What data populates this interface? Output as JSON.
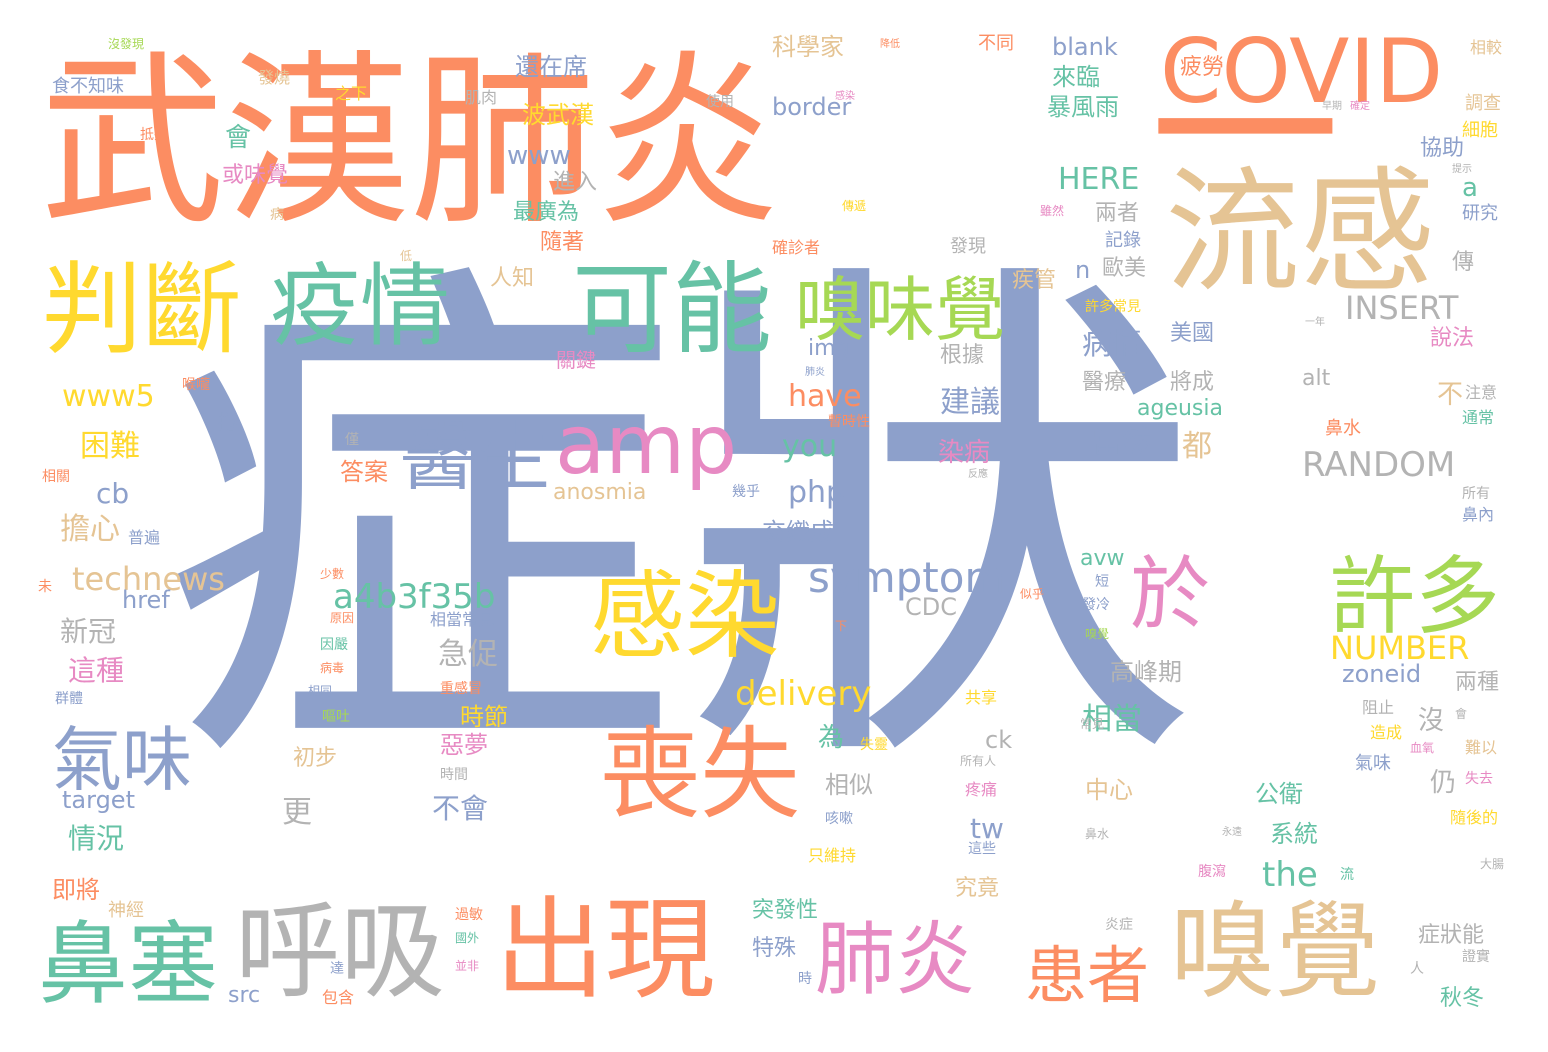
{
  "palette": {
    "orange": "#fc8d62",
    "blue": "#8da0cb",
    "beige": "#e5c494",
    "green": "#66c2a5",
    "yellow": "#ffd92f",
    "pink": "#e78ac3",
    "lime": "#a6d854",
    "gray": "#b3b3b3"
  },
  "words": [
    {
      "text": "症狀",
      "color": "blue",
      "size": 520
    },
    {
      "text": "武漢",
      "color": "orange",
      "size": 185
    },
    {
      "text": "肺炎",
      "color": "orange",
      "size": 185
    },
    {
      "text": "一",
      "color": "orange",
      "size": 190
    },
    {
      "text": "COVID",
      "color": "orange",
      "size": 88
    },
    {
      "text": "流感",
      "color": "beige",
      "size": 135
    },
    {
      "text": "判斷",
      "color": "yellow",
      "size": 100
    },
    {
      "text": "疫情",
      "color": "green",
      "size": 90
    },
    {
      "text": "可能",
      "color": "green",
      "size": 100
    },
    {
      "text": "嗅味覺",
      "color": "lime",
      "size": 70
    },
    {
      "text": "amp",
      "color": "pink",
      "size": 82
    },
    {
      "text": "醫生",
      "color": "blue",
      "size": 75
    },
    {
      "text": "感染",
      "color": "yellow",
      "size": 95
    },
    {
      "text": "於",
      "color": "pink",
      "size": 80
    },
    {
      "text": "許多",
      "color": "lime",
      "size": 85
    },
    {
      "text": "喪失",
      "color": "orange",
      "size": 100
    },
    {
      "text": "氣味",
      "color": "blue",
      "size": 70
    },
    {
      "text": "鼻塞",
      "color": "green",
      "size": 90
    },
    {
      "text": "呼吸",
      "color": "gray",
      "size": 105
    },
    {
      "text": "出現",
      "color": "orange",
      "size": 110
    },
    {
      "text": "肺炎",
      "color": "pink",
      "size": 80
    },
    {
      "text": "患者",
      "color": "orange",
      "size": 62
    },
    {
      "text": "嗅覺",
      "color": "beige",
      "size": 105
    },
    {
      "text": "symptom",
      "color": "blue",
      "size": 42
    },
    {
      "text": "a4b3f35b",
      "color": "green",
      "size": 34
    },
    {
      "text": "technews",
      "color": "beige",
      "size": 32
    },
    {
      "text": "delivery",
      "color": "yellow",
      "size": 34
    },
    {
      "text": "NUMBER",
      "color": "yellow",
      "size": 32
    },
    {
      "text": "RANDOM",
      "color": "gray",
      "size": 34
    },
    {
      "text": "INSERT",
      "color": "gray",
      "size": 32
    },
    {
      "text": "HERE",
      "color": "green",
      "size": 30
    },
    {
      "text": "www5",
      "color": "yellow",
      "size": 30
    },
    {
      "text": "www",
      "color": "blue",
      "size": 26
    },
    {
      "text": "border",
      "color": "blue",
      "size": 24
    },
    {
      "text": "blank",
      "color": "blue",
      "size": 24
    },
    {
      "text": "have",
      "color": "orange",
      "size": 30
    },
    {
      "text": "you",
      "color": "green",
      "size": 30
    },
    {
      "text": "php",
      "color": "blue",
      "size": 30
    },
    {
      "text": "the",
      "color": "green",
      "size": 34
    },
    {
      "text": "cb",
      "color": "blue",
      "size": 28
    },
    {
      "text": "tw",
      "color": "blue",
      "size": 28
    },
    {
      "text": "ck",
      "color": "gray",
      "size": 24
    },
    {
      "text": "img",
      "color": "blue",
      "size": 22
    },
    {
      "text": "alt",
      "color": "gray",
      "size": 22
    },
    {
      "text": "ageusia",
      "color": "green",
      "size": 22
    },
    {
      "text": "anosmia",
      "color": "beige",
      "size": 22
    },
    {
      "text": "href",
      "color": "blue",
      "size": 24
    },
    {
      "text": "CDC",
      "color": "gray",
      "size": 24
    },
    {
      "text": "zoneid",
      "color": "blue",
      "size": 24
    },
    {
      "text": "target",
      "color": "blue",
      "size": 24
    },
    {
      "text": "src",
      "color": "blue",
      "size": 22
    },
    {
      "text": "avw",
      "color": "green",
      "size": 22
    },
    {
      "text": "a",
      "color": "green",
      "size": 26
    },
    {
      "text": "n",
      "color": "blue",
      "size": 24
    },
    {
      "text": "還在席",
      "color": "blue",
      "size": 24
    },
    {
      "text": "科學家",
      "color": "beige",
      "size": 24
    },
    {
      "text": "不同",
      "color": "orange",
      "size": 18
    },
    {
      "text": "來臨",
      "color": "green",
      "size": 24
    },
    {
      "text": "暴風雨",
      "color": "green",
      "size": 24
    },
    {
      "text": "疲勞",
      "color": "orange",
      "size": 22
    },
    {
      "text": "波武漢",
      "color": "yellow",
      "size": 24
    },
    {
      "text": "會",
      "color": "green",
      "size": 26
    },
    {
      "text": "或味覺",
      "color": "pink",
      "size": 22
    },
    {
      "text": "進入",
      "color": "gray",
      "size": 22
    },
    {
      "text": "最廣為",
      "color": "green",
      "size": 22
    },
    {
      "text": "隨著",
      "color": "orange",
      "size": 22
    },
    {
      "text": "協助",
      "color": "blue",
      "size": 22
    },
    {
      "text": "兩者",
      "color": "gray",
      "size": 22
    },
    {
      "text": "記錄",
      "color": "blue",
      "size": 18
    },
    {
      "text": "歐美",
      "color": "gray",
      "size": 22
    },
    {
      "text": "疾管",
      "color": "beige",
      "size": 22
    },
    {
      "text": "病情",
      "color": "blue",
      "size": 30
    },
    {
      "text": "美國",
      "color": "blue",
      "size": 22
    },
    {
      "text": "醫療",
      "color": "gray",
      "size": 22
    },
    {
      "text": "將成",
      "color": "gray",
      "size": 22
    },
    {
      "text": "建議",
      "color": "blue",
      "size": 30
    },
    {
      "text": "根據",
      "color": "gray",
      "size": 22
    },
    {
      "text": "當然",
      "color": "blue",
      "size": 30
    },
    {
      "text": "都",
      "color": "beige",
      "size": 30
    },
    {
      "text": "不",
      "color": "beige",
      "size": 26
    },
    {
      "text": "染病",
      "color": "pink",
      "size": 26
    },
    {
      "text": "困難",
      "color": "yellow",
      "size": 30
    },
    {
      "text": "擔心",
      "color": "beige",
      "size": 30
    },
    {
      "text": "捲",
      "color": "blue",
      "size": 20
    },
    {
      "text": "答案",
      "color": "orange",
      "size": 24
    },
    {
      "text": "交織成",
      "color": "blue",
      "size": 24
    },
    {
      "text": "急促",
      "color": "gray",
      "size": 30
    },
    {
      "text": "新冠",
      "color": "gray",
      "size": 28
    },
    {
      "text": "這種",
      "color": "pink",
      "size": 28
    },
    {
      "text": "時節",
      "color": "yellow",
      "size": 24
    },
    {
      "text": "惡夢",
      "color": "pink",
      "size": 24
    },
    {
      "text": "不會",
      "color": "blue",
      "size": 28
    },
    {
      "text": "相當",
      "color": "green",
      "size": 30
    },
    {
      "text": "高峰期",
      "color": "gray",
      "size": 24
    },
    {
      "text": "沒",
      "color": "gray",
      "size": 26
    },
    {
      "text": "仍",
      "color": "gray",
      "size": 26
    },
    {
      "text": "為",
      "color": "green",
      "size": 26
    },
    {
      "text": "相似",
      "color": "gray",
      "size": 24
    },
    {
      "text": "中心",
      "color": "beige",
      "size": 24
    },
    {
      "text": "公衛",
      "color": "green",
      "size": 24
    },
    {
      "text": "系統",
      "color": "green",
      "size": 24
    },
    {
      "text": "氣味",
      "color": "blue",
      "size": 18
    },
    {
      "text": "更",
      "color": "gray",
      "size": 30
    },
    {
      "text": "情況",
      "color": "green",
      "size": 28
    },
    {
      "text": "即將",
      "color": "orange",
      "size": 24
    },
    {
      "text": "神經",
      "color": "beige",
      "size": 18
    },
    {
      "text": "初步",
      "color": "beige",
      "size": 22
    },
    {
      "text": "究竟",
      "color": "beige",
      "size": 22
    },
    {
      "text": "突發性",
      "color": "green",
      "size": 22
    },
    {
      "text": "特殊",
      "color": "blue",
      "size": 22
    },
    {
      "text": "兩種",
      "color": "gray",
      "size": 22
    },
    {
      "text": "說法",
      "color": "pink",
      "size": 22
    },
    {
      "text": "傳",
      "color": "gray",
      "size": 22
    },
    {
      "text": "研究",
      "color": "blue",
      "size": 18
    },
    {
      "text": "調查",
      "color": "beige",
      "size": 18
    },
    {
      "text": "細胞",
      "color": "yellow",
      "size": 18
    },
    {
      "text": "相較",
      "color": "beige",
      "size": 16
    },
    {
      "text": "症狀能",
      "color": "gray",
      "size": 22
    },
    {
      "text": "秋冬",
      "color": "green",
      "size": 22
    },
    {
      "text": "人知",
      "color": "beige",
      "size": 22
    },
    {
      "text": "關鍵",
      "color": "pink",
      "size": 20
    },
    {
      "text": "確診者",
      "color": "orange",
      "size": 16
    },
    {
      "text": "發現",
      "color": "gray",
      "size": 18
    },
    {
      "text": "許多常見",
      "color": "yellow",
      "size": 14
    },
    {
      "text": "鼻水",
      "color": "orange",
      "size": 18
    },
    {
      "text": "注意",
      "color": "gray",
      "size": 16
    },
    {
      "text": "通常",
      "color": "green",
      "size": 16
    },
    {
      "text": "所有",
      "color": "gray",
      "size": 14
    },
    {
      "text": "鼻內",
      "color": "blue",
      "size": 16
    },
    {
      "text": "難以",
      "color": "beige",
      "size": 16
    },
    {
      "text": "失去",
      "color": "pink",
      "size": 14
    },
    {
      "text": "隨後的",
      "color": "yellow",
      "size": 16
    },
    {
      "text": "造成",
      "color": "yellow",
      "size": 16
    },
    {
      "text": "阻止",
      "color": "gray",
      "size": 16
    },
    {
      "text": "食不知味",
      "color": "blue",
      "size": 18
    },
    {
      "text": "沒發現",
      "color": "lime",
      "size": 12
    },
    {
      "text": "發燒",
      "color": "beige",
      "size": 16
    },
    {
      "text": "之下",
      "color": "yellow",
      "size": 16
    },
    {
      "text": "肌肉",
      "color": "gray",
      "size": 16
    },
    {
      "text": "使用",
      "color": "gray",
      "size": 14
    },
    {
      "text": "抵擋",
      "color": "orange",
      "size": 14
    },
    {
      "text": "病",
      "color": "beige",
      "size": 14
    },
    {
      "text": "傳遞",
      "color": "yellow",
      "size": 12
    },
    {
      "text": "雖然",
      "color": "pink",
      "size": 12
    },
    {
      "text": "普遍",
      "color": "blue",
      "size": 16
    },
    {
      "text": "相關",
      "color": "orange",
      "size": 14
    },
    {
      "text": "喉嚨",
      "color": "orange",
      "size": 14
    },
    {
      "text": "未",
      "color": "orange",
      "size": 14
    },
    {
      "text": "少數",
      "color": "orange",
      "size": 12
    },
    {
      "text": "群體",
      "color": "blue",
      "size": 14
    },
    {
      "text": "暫時性",
      "color": "orange",
      "size": 14
    },
    {
      "text": "幾乎",
      "color": "blue",
      "size": 14
    },
    {
      "text": "僅",
      "color": "gray",
      "size": 14
    },
    {
      "text": "原因",
      "color": "orange",
      "size": 12
    },
    {
      "text": "相當常見",
      "color": "blue",
      "size": 16
    },
    {
      "text": "嗅覺",
      "color": "lime",
      "size": 12
    },
    {
      "text": "重感冒",
      "color": "orange",
      "size": 14
    },
    {
      "text": "因嚴",
      "color": "green",
      "size": 14
    },
    {
      "text": "病毒",
      "color": "orange",
      "size": 12
    },
    {
      "text": "嘔吐",
      "color": "lime",
      "size": 14
    },
    {
      "text": "相同",
      "color": "blue",
      "size": 12
    },
    {
      "text": "共享",
      "color": "yellow",
      "size": 16
    },
    {
      "text": "失靈",
      "color": "yellow",
      "size": 14
    },
    {
      "text": "所有人",
      "color": "gray",
      "size": 12
    },
    {
      "text": "時間",
      "color": "gray",
      "size": 14
    },
    {
      "text": "咳嗽",
      "color": "blue",
      "size": 14
    },
    {
      "text": "疼痛",
      "color": "pink",
      "size": 16
    },
    {
      "text": "只維持",
      "color": "yellow",
      "size": 16
    },
    {
      "text": "這些",
      "color": "blue",
      "size": 14
    },
    {
      "text": "過敏",
      "color": "orange",
      "size": 14
    },
    {
      "text": "國外",
      "color": "green",
      "size": 12
    },
    {
      "text": "並非",
      "color": "pink",
      "size": 12
    },
    {
      "text": "達",
      "color": "blue",
      "size": 14
    },
    {
      "text": "包含",
      "color": "orange",
      "size": 16
    },
    {
      "text": "炎症",
      "color": "gray",
      "size": 14
    },
    {
      "text": "時",
      "color": "blue",
      "size": 14
    },
    {
      "text": "短",
      "color": "blue",
      "size": 14
    },
    {
      "text": "發冷",
      "color": "blue",
      "size": 14
    },
    {
      "text": "鼻水",
      "color": "gray",
      "size": 12
    },
    {
      "text": "腹瀉",
      "color": "pink",
      "size": 14
    },
    {
      "text": "證實",
      "color": "gray",
      "size": 14
    },
    {
      "text": "人",
      "color": "gray",
      "size": 14
    },
    {
      "text": "大腸",
      "color": "gray",
      "size": 12
    },
    {
      "text": "流",
      "color": "green",
      "size": 14
    },
    {
      "text": "永遠",
      "color": "gray",
      "size": 10
    },
    {
      "text": "一年",
      "color": "gray",
      "size": 10
    },
    {
      "text": "確定",
      "color": "pink",
      "size": 10
    },
    {
      "text": "提示",
      "color": "gray",
      "size": 10
    },
    {
      "text": "早期",
      "color": "gray",
      "size": 10
    },
    {
      "text": "感染",
      "color": "pink",
      "size": 10
    },
    {
      "text": "降低",
      "color": "orange",
      "size": 10
    },
    {
      "text": "常見",
      "color": "gray",
      "size": 12
    },
    {
      "text": "肺炎",
      "color": "blue",
      "size": 10
    },
    {
      "text": "會",
      "color": "gray",
      "size": 12
    },
    {
      "text": "下",
      "color": "orange",
      "size": 12
    },
    {
      "text": "似乎",
      "color": "orange",
      "size": 12
    },
    {
      "text": "反應",
      "color": "gray",
      "size": 10
    },
    {
      "text": "低",
      "color": "beige",
      "size": 12
    },
    {
      "text": "血氧",
      "color": "pink",
      "size": 12
    }
  ]
}
